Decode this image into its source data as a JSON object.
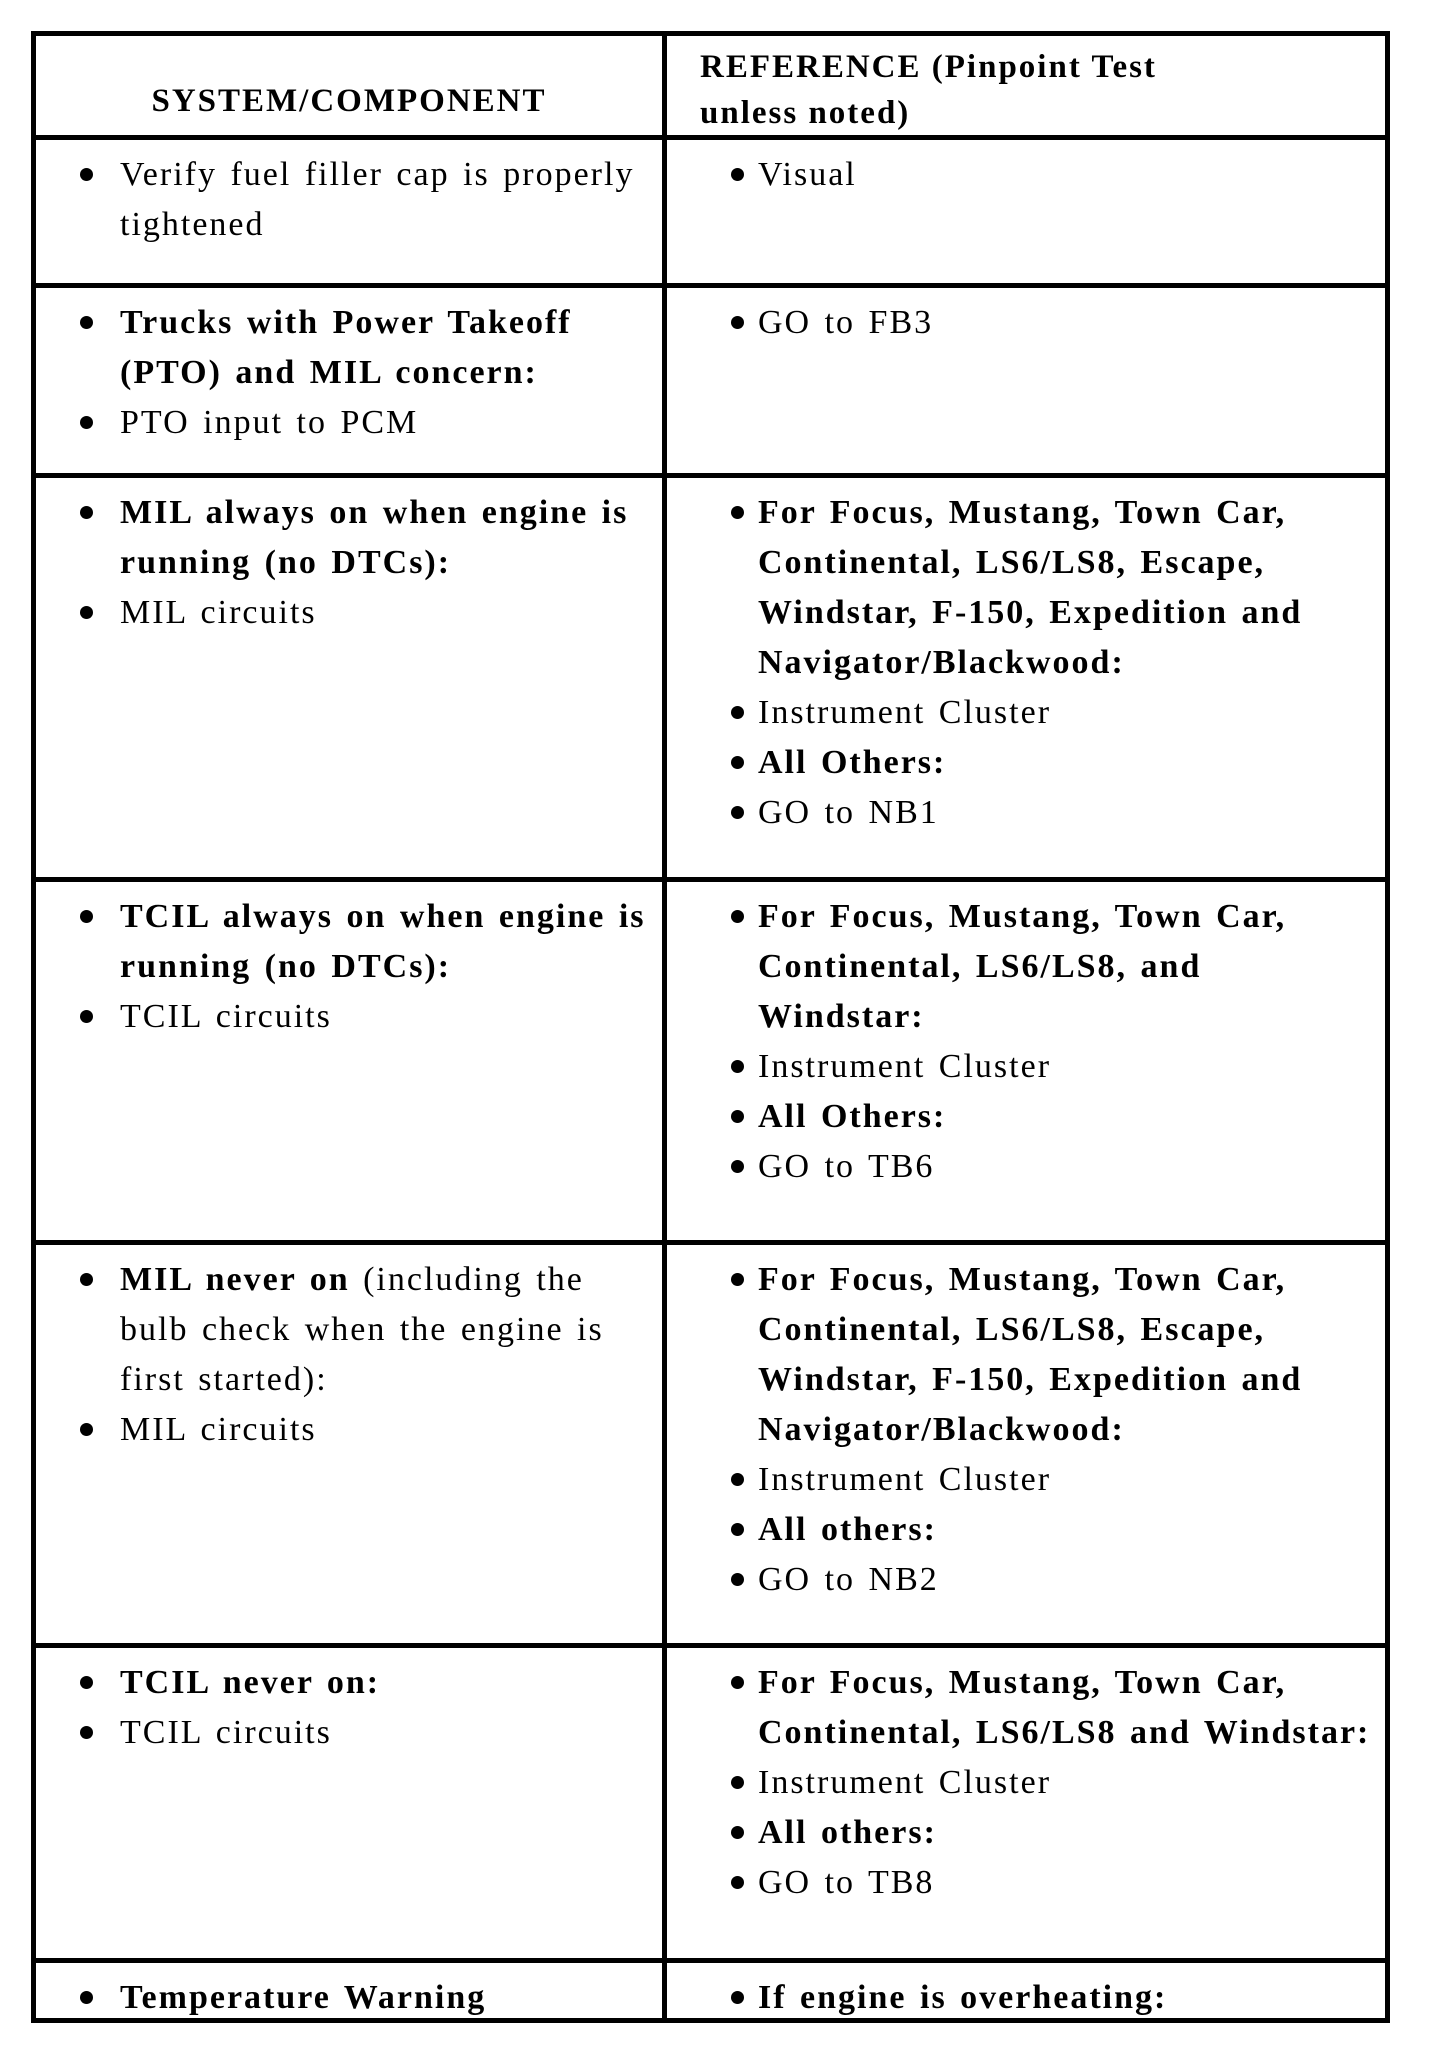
{
  "table": {
    "header": {
      "col1": "SYSTEM/COMPONENT",
      "col2": "REFERENCE (Pinpoint Test\nunless noted)"
    },
    "rows": [
      {
        "left": [
          {
            "b": "",
            "r": "Verify fuel filler cap is properly\ntightened"
          }
        ],
        "right": [
          {
            "b": "",
            "r": "Visual"
          }
        ]
      },
      {
        "left": [
          {
            "b": "Trucks with Power Takeoff\n(PTO) and MIL concern:",
            "r": ""
          },
          {
            "b": "",
            "r": "PTO input to PCM"
          }
        ],
        "right": [
          {
            "b": "",
            "r": "GO to FB3"
          }
        ]
      },
      {
        "left": [
          {
            "b": "MIL always on when engine is\nrunning (no DTCs):",
            "r": ""
          },
          {
            "b": "",
            "r": "MIL circuits"
          }
        ],
        "right": [
          {
            "b": "For Focus, Mustang, Town Car,\nContinental, LS6/LS8, Escape,\nWindstar, F-150, Expedition and\nNavigator/Blackwood:",
            "r": ""
          },
          {
            "b": "",
            "r": "Instrument Cluster"
          },
          {
            "b": "All Others:",
            "r": ""
          },
          {
            "b": "",
            "r": "GO to NB1"
          }
        ]
      },
      {
        "left": [
          {
            "b": "TCIL always on when engine is\nrunning (no DTCs):",
            "r": ""
          },
          {
            "b": "",
            "r": "TCIL circuits"
          }
        ],
        "right": [
          {
            "b": "For Focus, Mustang, Town Car,\nContinental, LS6/LS8, and\nWindstar:",
            "r": ""
          },
          {
            "b": "",
            "r": "Instrument Cluster"
          },
          {
            "b": "All Others:",
            "r": ""
          },
          {
            "b": "",
            "r": "GO to TB6"
          }
        ]
      },
      {
        "left": [
          {
            "b": "MIL never on ",
            "r": "(including the\nbulb check when the engine is\nfirst started):"
          },
          {
            "b": "",
            "r": "MIL circuits"
          }
        ],
        "right": [
          {
            "b": "For Focus, Mustang, Town Car,\nContinental, LS6/LS8, Escape,\nWindstar, F-150, Expedition and\nNavigator/Blackwood:",
            "r": ""
          },
          {
            "b": "",
            "r": "Instrument Cluster"
          },
          {
            "b": "All others:",
            "r": ""
          },
          {
            "b": "",
            "r": "GO to NB2"
          }
        ]
      },
      {
        "left": [
          {
            "b": "TCIL never on:",
            "r": ""
          },
          {
            "b": "",
            "r": "TCIL circuits"
          }
        ],
        "right": [
          {
            "b": "For Focus, Mustang, Town Car,\nContinental, LS6/LS8 and Windstar:",
            "r": ""
          },
          {
            "b": "",
            "r": "Instrument Cluster"
          },
          {
            "b": "All others:",
            "r": ""
          },
          {
            "b": "",
            "r": "GO to TB8"
          }
        ]
      },
      {
        "left": [
          {
            "b": "Temperature Warning",
            "r": ""
          }
        ],
        "right": [
          {
            "b": "If engine is overheating:",
            "r": ""
          }
        ]
      }
    ]
  }
}
